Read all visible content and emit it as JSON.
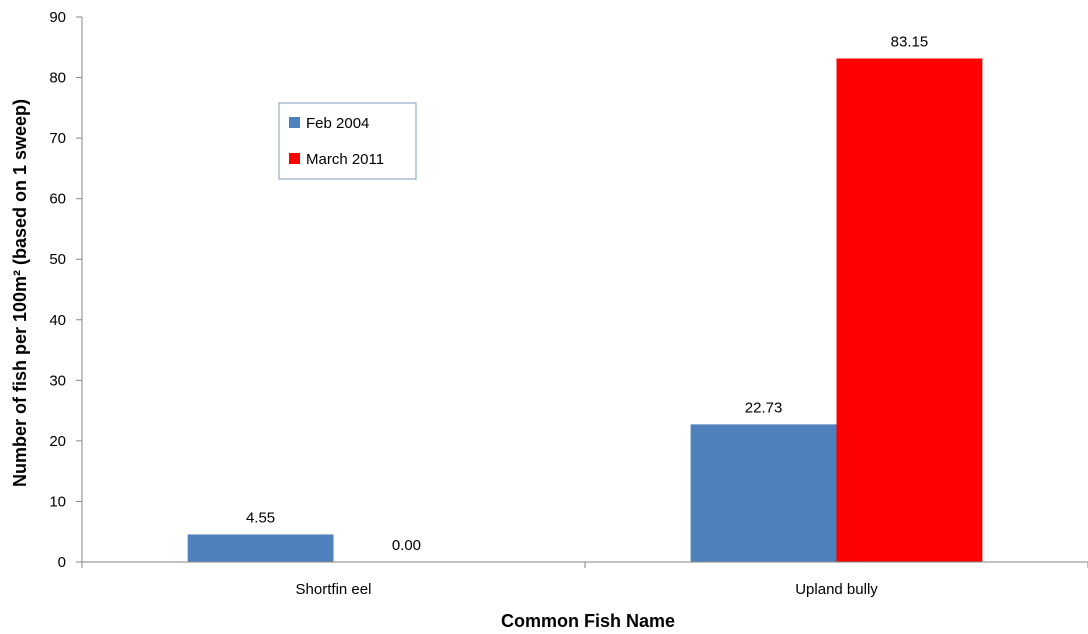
{
  "chart_data": {
    "type": "bar",
    "categories": [
      "Shortfin eel",
      "Upland bully"
    ],
    "series": [
      {
        "name": "Feb 2004",
        "values": [
          4.55,
          22.73
        ],
        "color": "#4F81BD"
      },
      {
        "name": "March 2011",
        "values": [
          0.0,
          83.15
        ],
        "color": "#FF0000"
      }
    ],
    "data_labels": [
      [
        "4.55",
        "22.73"
      ],
      [
        "0.00",
        "83.15"
      ]
    ],
    "xlabel": "Common Fish Name",
    "ylabel": "Number of fish per 100m² (based on 1 sweep)",
    "ylim": [
      0,
      90
    ],
    "yticks": [
      0,
      10,
      20,
      30,
      40,
      50,
      60,
      70,
      80,
      90
    ],
    "grid": false,
    "legend_position": "upper-left"
  }
}
